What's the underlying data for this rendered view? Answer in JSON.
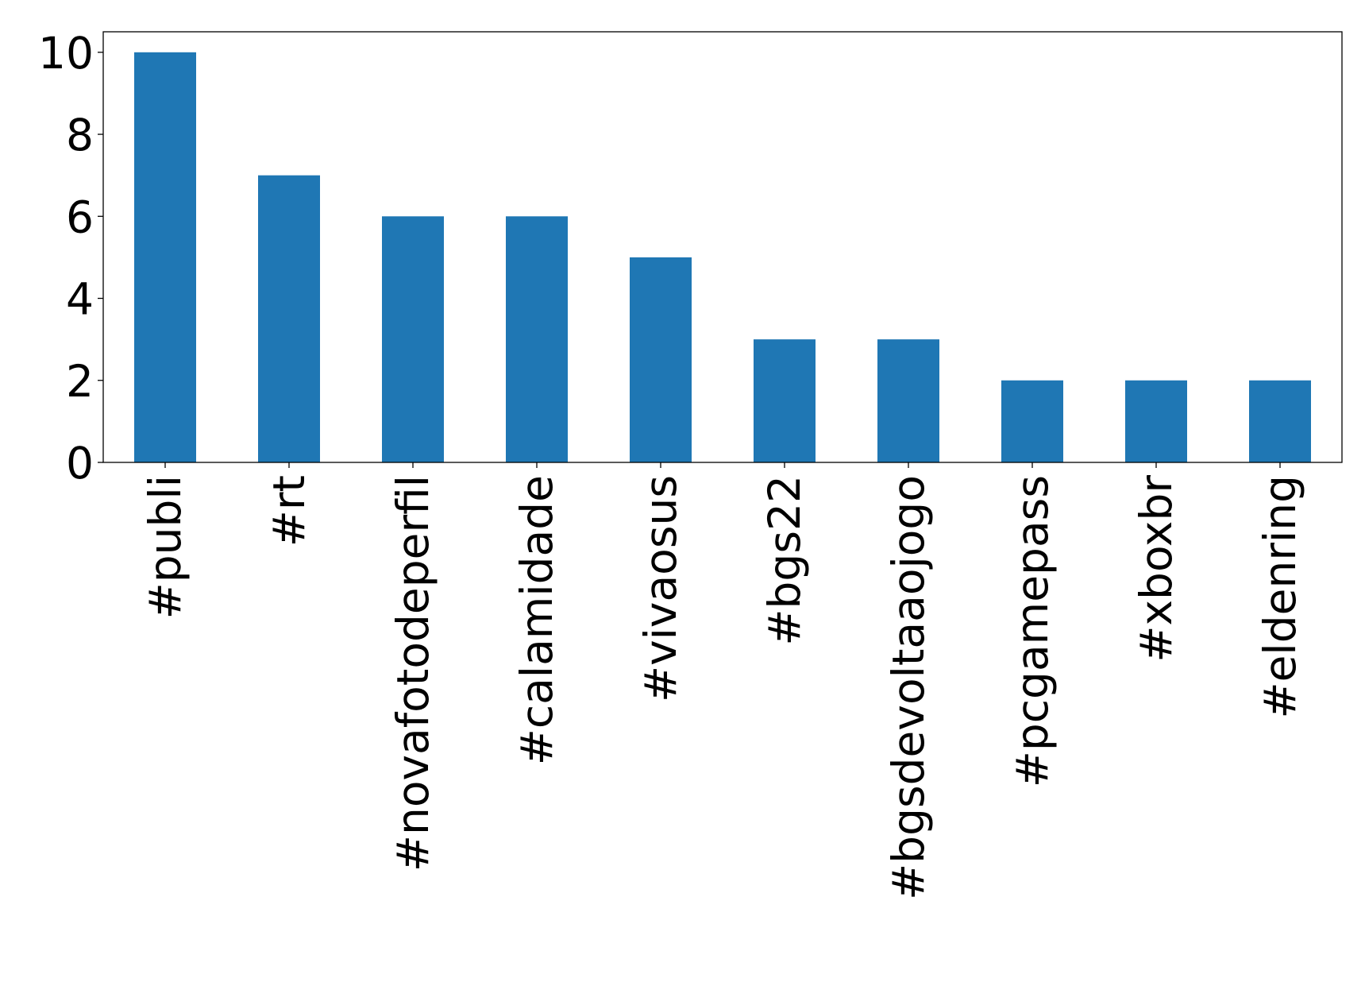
{
  "chart_data": {
    "type": "bar",
    "title": "",
    "xlabel": "",
    "ylabel": "",
    "categories": [
      "#publi",
      "#rt",
      "#novafotodeperfil",
      "#calamidade",
      "#vivaosus",
      "#bgs22",
      "#bgsdevoltaaojogo",
      "#pcgamepass",
      "#xboxbr",
      "#eldenring"
    ],
    "values": [
      10,
      7,
      6,
      6,
      5,
      3,
      3,
      2,
      2,
      2
    ],
    "ylim": [
      0,
      10.5
    ],
    "yticks": [
      "0",
      "2",
      "4",
      "6",
      "8",
      "10"
    ],
    "bar_color": "#1f77b4",
    "grid": false,
    "legend": "none"
  }
}
